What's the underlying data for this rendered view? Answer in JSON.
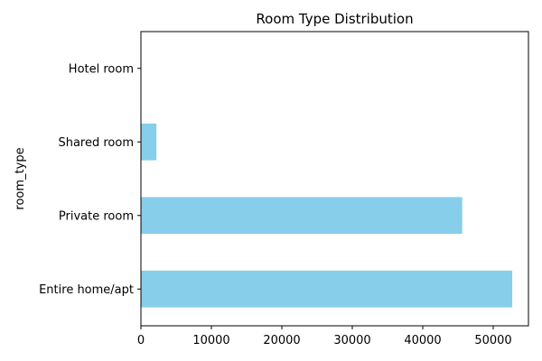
{
  "chart_data": {
    "type": "bar",
    "orientation": "horizontal",
    "title": "Room Type Distribution",
    "xlabel": "",
    "ylabel": "room_type",
    "categories": [
      "Entire home/apt",
      "Private room",
      "Shared room",
      "Hotel room"
    ],
    "values": [
      52700,
      45600,
      2200,
      0
    ],
    "xlim": [
      0,
      55000
    ],
    "xticks": [
      0,
      10000,
      20000,
      30000,
      40000,
      50000
    ],
    "xtick_labels": [
      "0",
      "10000",
      "20000",
      "30000",
      "40000",
      "50000"
    ],
    "bar_color": "#87CEEB",
    "grid": false
  }
}
